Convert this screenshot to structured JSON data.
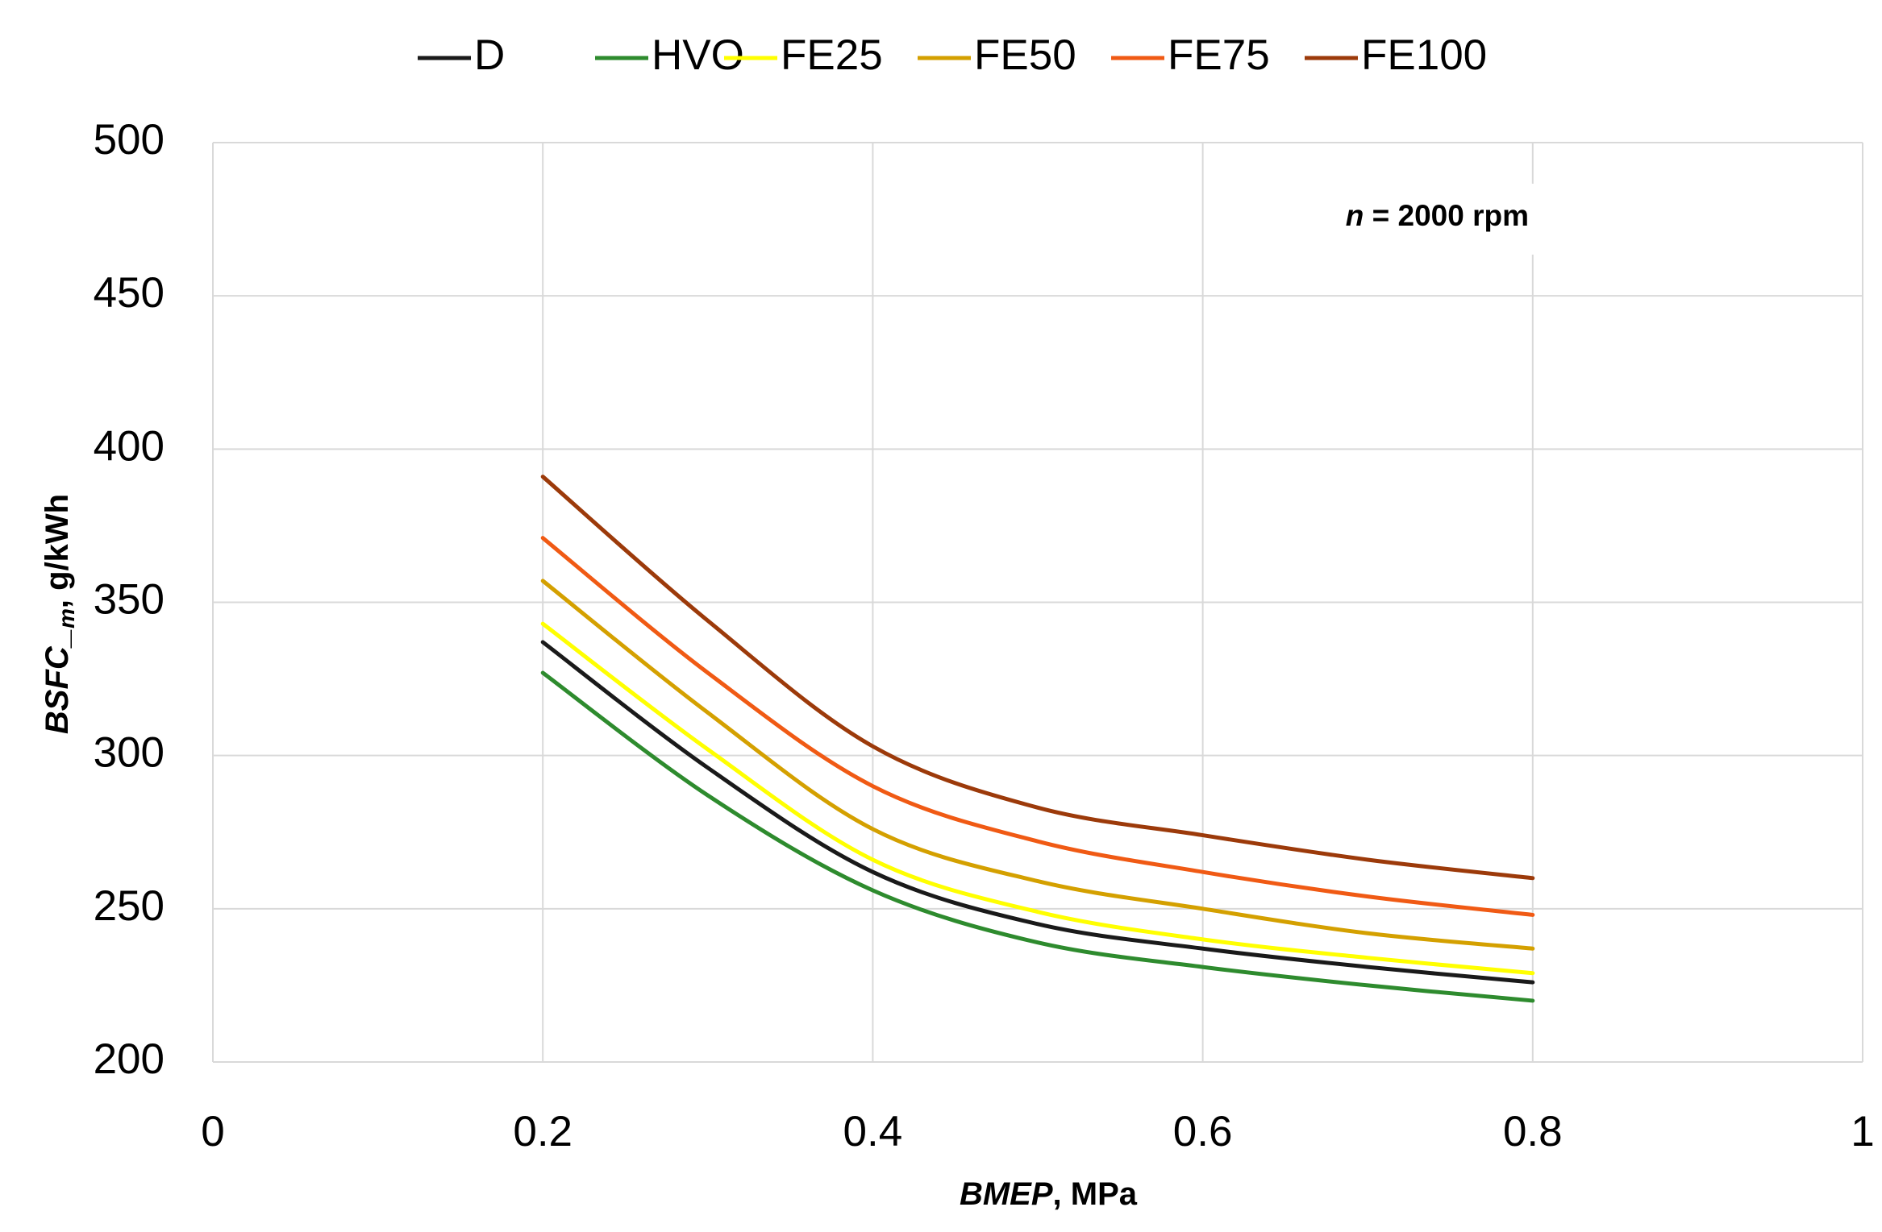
{
  "chart_data": {
    "type": "line",
    "xlabel_italic": "BMEP",
    "xlabel_rest": ", MPa",
    "ylabel_italic": "BSFC_",
    "ylabel_sub": "m",
    "ylabel_rest": ", g/kWh",
    "annotation_italic": "n",
    "annotation_rest": " = 2000 rpm",
    "xlim": [
      0,
      1
    ],
    "ylim": [
      200,
      500
    ],
    "x_ticks": [
      "0",
      "0.2",
      "0.4",
      "0.6",
      "0.8",
      "1"
    ],
    "y_ticks": [
      "500",
      "450",
      "400",
      "350",
      "300",
      "250",
      "200"
    ],
    "legend_position": "top-center",
    "x": [
      0.2,
      0.3,
      0.4,
      0.5,
      0.6,
      0.7,
      0.8
    ],
    "series": [
      {
        "name": "D",
        "color": "#1a1a1a",
        "values": [
          337,
          296,
          262,
          245,
          237,
          231,
          226
        ]
      },
      {
        "name": "HVO",
        "color": "#2e8b2e",
        "values": [
          327,
          287,
          256,
          239,
          231,
          225,
          220
        ]
      },
      {
        "name": "FE25",
        "color": "#ffff00",
        "values": [
          343,
          302,
          266,
          249,
          240,
          234,
          229
        ]
      },
      {
        "name": "FE50",
        "color": "#d4a000",
        "values": [
          357,
          314,
          276,
          259,
          250,
          242,
          237
        ]
      },
      {
        "name": "FE75",
        "color": "#f05a14",
        "values": [
          371,
          327,
          290,
          272,
          262,
          254,
          248
        ]
      },
      {
        "name": "FE100",
        "color": "#9c3a0a",
        "values": [
          391,
          344,
          303,
          283,
          274,
          266,
          260
        ]
      }
    ]
  }
}
